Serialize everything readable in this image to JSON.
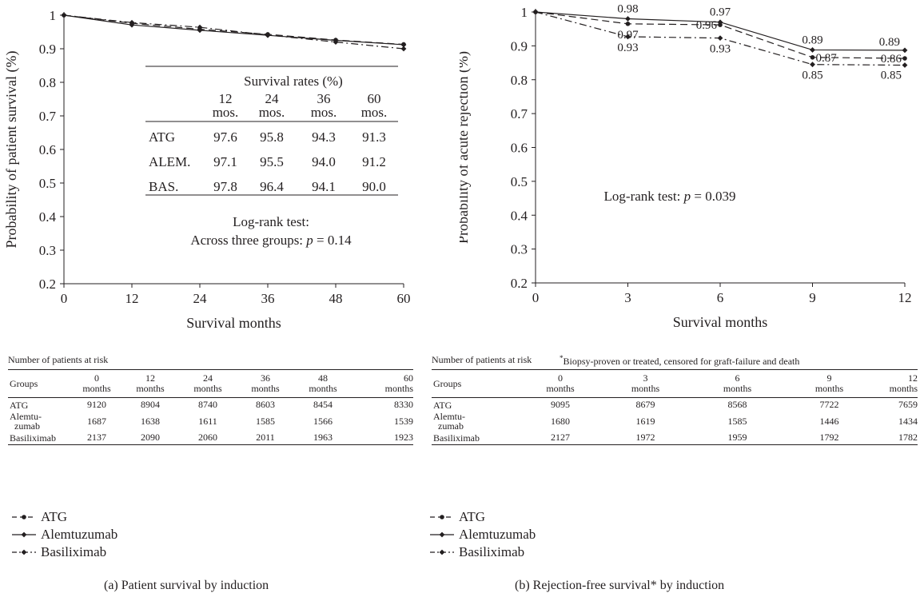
{
  "chart_data": [
    {
      "id": "a",
      "type": "line",
      "caption": "(a)  Patient survival by induction",
      "xlabel": "Survival months",
      "ylabel": "Probability of patient survival (%)",
      "xlim": [
        0,
        60
      ],
      "ylim": [
        0.2,
        1.0
      ],
      "xticks": [
        0,
        12,
        24,
        36,
        48,
        60
      ],
      "yticks": [
        "0.2",
        "0.3",
        "0.4",
        "0.5",
        "0.6",
        "0.7",
        "0.8",
        "0.9",
        "1"
      ],
      "series": [
        {
          "name": "ATG",
          "style": "dash",
          "marker": "dot",
          "x": [
            0,
            12,
            24,
            36,
            48,
            60
          ],
          "y": [
            1.0,
            0.976,
            0.958,
            0.943,
            0.926,
            0.913
          ]
        },
        {
          "name": "Alemtuzumab",
          "style": "solid",
          "marker": "diamond",
          "x": [
            0,
            12,
            24,
            36,
            48,
            60
          ],
          "y": [
            1.0,
            0.971,
            0.955,
            0.94,
            0.925,
            0.912
          ]
        },
        {
          "name": "Basiliximab",
          "style": "dashdot",
          "marker": "diamond",
          "x": [
            0,
            12,
            24,
            36,
            48,
            60
          ],
          "y": [
            1.0,
            0.978,
            0.964,
            0.941,
            0.92,
            0.9
          ]
        }
      ],
      "annotations": [],
      "inset": {
        "title": "Survival rates (%)",
        "columns": [
          [
            "12",
            "mos."
          ],
          [
            "24",
            "mos."
          ],
          [
            "36",
            "mos."
          ],
          [
            "60",
            "mos."
          ]
        ],
        "rows": [
          {
            "label": "ATG",
            "values": [
              "97.6",
              "95.8",
              "94.3",
              "91.3"
            ]
          },
          {
            "label": "ALEM.",
            "values": [
              "97.1",
              "95.5",
              "94.0",
              "91.2"
            ]
          },
          {
            "label": "BAS.",
            "values": [
              "97.8",
              "96.4",
              "94.1",
              "90.0"
            ]
          }
        ]
      },
      "test_text": [
        {
          "text": "Log-rank test:"
        },
        {
          "text": "Across three groups: ",
          "p": "p",
          "tail": " = 0.14"
        }
      ]
    },
    {
      "id": "b",
      "type": "line",
      "caption": "(b)  Rejection-free survival* by induction",
      "xlabel": "Survival months",
      "ylabel": "Probability of acute rejection (%)",
      "xlim": [
        0,
        12
      ],
      "ylim": [
        0.2,
        1.0
      ],
      "xticks": [
        0,
        3,
        6,
        9,
        12
      ],
      "yticks": [
        "0.2",
        "0.3",
        "0.4",
        "0.5",
        "0.6",
        "0.7",
        "0.8",
        "0.9",
        "1"
      ],
      "series": [
        {
          "name": "ATG",
          "style": "dash",
          "marker": "dot",
          "x": [
            0,
            3,
            6,
            9,
            12
          ],
          "y": [
            1.0,
            0.965,
            0.962,
            0.866,
            0.863
          ]
        },
        {
          "name": "Alemtuzumab",
          "style": "solid",
          "marker": "diamond",
          "x": [
            0,
            3,
            6,
            9,
            12
          ],
          "y": [
            1.0,
            0.98,
            0.97,
            0.888,
            0.887
          ]
        },
        {
          "name": "Basiliximab",
          "style": "dashdot",
          "marker": "diamond",
          "x": [
            0,
            3,
            6,
            9,
            12
          ],
          "y": [
            1.0,
            0.927,
            0.923,
            0.845,
            0.843
          ]
        }
      ],
      "annotations": [
        {
          "text": "0.98",
          "x": 3,
          "y": 0.98,
          "pos": "above"
        },
        {
          "text": "0.97",
          "x": 3,
          "y": 0.965,
          "pos": "below"
        },
        {
          "text": "0.93",
          "x": 3,
          "y": 0.927,
          "pos": "below"
        },
        {
          "text": "0.97",
          "x": 6,
          "y": 0.97,
          "pos": "above"
        },
        {
          "text": "0.96",
          "x": 6,
          "y": 0.962,
          "pos": "left"
        },
        {
          "text": "0.93",
          "x": 6,
          "y": 0.923,
          "pos": "below"
        },
        {
          "text": "0.89",
          "x": 9,
          "y": 0.888,
          "pos": "above"
        },
        {
          "text": "0.87",
          "x": 9,
          "y": 0.866,
          "pos": "right"
        },
        {
          "text": "0.85",
          "x": 9,
          "y": 0.845,
          "pos": "below"
        },
        {
          "text": "0.89",
          "x": 12,
          "y": 0.887,
          "pos": "aboveleft"
        },
        {
          "text": "0.86",
          "x": 12,
          "y": 0.863,
          "pos": "left"
        },
        {
          "text": "0.85",
          "x": 12,
          "y": 0.843,
          "pos": "belowleft"
        }
      ],
      "test_text": [
        {
          "text": "Log-rank test: ",
          "p": "p",
          "tail": " = 0.039"
        }
      ]
    }
  ],
  "risk_tables": [
    {
      "caption": "Number of patients at risk",
      "footnote": "",
      "header": [
        "Groups",
        [
          "0",
          "months"
        ],
        [
          "12",
          "months"
        ],
        [
          "24",
          "months"
        ],
        [
          "36",
          "months"
        ],
        [
          "48",
          "months"
        ],
        [
          "60",
          "months"
        ]
      ],
      "rows": [
        {
          "group": [
            "ATG"
          ],
          "values": [
            "9120",
            "8904",
            "8740",
            "8603",
            "8454",
            "8330"
          ]
        },
        {
          "group": [
            "Alemtu-",
            "zumab"
          ],
          "values": [
            "1687",
            "1638",
            "1611",
            "1585",
            "1566",
            "1539"
          ]
        },
        {
          "group": [
            "Basiliximab"
          ],
          "values": [
            "2137",
            "2090",
            "2060",
            "2011",
            "1963",
            "1923"
          ]
        }
      ]
    },
    {
      "caption": "Number of patients at risk",
      "footnote": "*Biopsy-proven or treated, censored for graft-failure and death",
      "header": [
        "Groups",
        [
          "0",
          "months"
        ],
        [
          "3",
          "months"
        ],
        [
          "6",
          "months"
        ],
        [
          "9",
          "months"
        ],
        [
          "12",
          "months"
        ]
      ],
      "rows": [
        {
          "group": [
            "ATG"
          ],
          "values": [
            "9095",
            "8679",
            "8568",
            "7722",
            "7659"
          ]
        },
        {
          "group": [
            "Alemtu-",
            "zumab"
          ],
          "values": [
            "1680",
            "1619",
            "1585",
            "1446",
            "1434"
          ]
        },
        {
          "group": [
            "Basiliximab"
          ],
          "values": [
            "2127",
            "1972",
            "1959",
            "1792",
            "1782"
          ]
        }
      ]
    }
  ],
  "legend": [
    "ATG",
    "Alemtuzumab",
    "Basiliximab"
  ]
}
